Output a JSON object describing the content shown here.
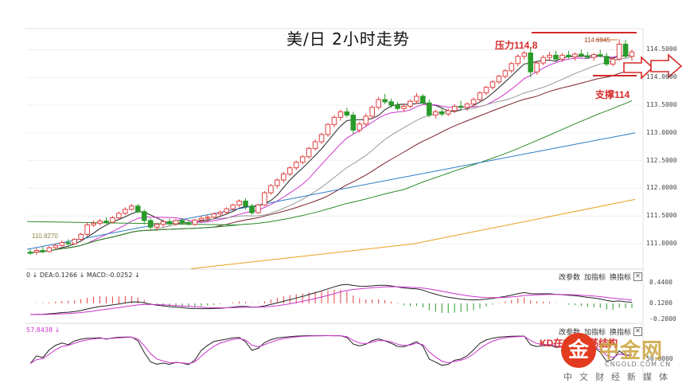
{
  "title": "美/日 2小时走势",
  "annotations": {
    "resistance": "压力114.8",
    "support": "支撑114",
    "last_price": "114.6945",
    "low_label": "110.8270",
    "kd_note_1": "KD在5",
    "kd_note_2": "震荡结构"
  },
  "macd_panel": {
    "prefix": "0",
    "dea_label": "DEA:0.1266",
    "macd_label": "MACD:-0.0252",
    "buttons": [
      "改参数",
      "加指标",
      "换指标"
    ],
    "close": "✕",
    "ticks": [
      "0.4400",
      "0.1200",
      "-0.2000"
    ]
  },
  "kd_panel": {
    "value_label": "57.8438",
    "buttons": [
      "改参数",
      "加指标",
      "换指标"
    ],
    "close": "✕",
    "ticks": [
      "50.0000"
    ]
  },
  "watermark": {
    "logo": "金",
    "name": "中金网",
    "url": "CNGOLD.COM.CN",
    "sub": "中文财经新媒体"
  },
  "colors": {
    "up": "#e04040",
    "down": "#2a9a2a",
    "ma_black": "#222222",
    "ma_magenta": "#cc33cc",
    "ma_gray": "#999999",
    "ma_darkred": "#7a1f2a",
    "ma_green": "#2a8a2a",
    "ma_blue": "#2a7ac0",
    "ma_orange": "#e8a020",
    "annotation": "#d42a2a"
  },
  "chart_data": {
    "type": "candlestick",
    "yticks": [
      "114.5000",
      "114.0000",
      "113.5000",
      "113.0000",
      "112.5000",
      "112.0000",
      "111.5000",
      "111.0000"
    ],
    "ylim": [
      110.6,
      114.85
    ],
    "candles": [
      [
        110.85,
        110.9,
        110.8,
        110.83
      ],
      [
        110.85,
        110.92,
        110.8,
        110.88
      ],
      [
        110.88,
        110.95,
        110.83,
        110.86
      ],
      [
        110.86,
        110.96,
        110.84,
        110.93
      ],
      [
        110.93,
        111.0,
        110.9,
        110.97
      ],
      [
        110.97,
        111.06,
        110.95,
        111.02
      ],
      [
        111.02,
        111.08,
        110.96,
        111.0
      ],
      [
        111.0,
        111.1,
        110.98,
        111.08
      ],
      [
        111.08,
        111.2,
        111.05,
        111.17
      ],
      [
        111.17,
        111.38,
        111.14,
        111.34
      ],
      [
        111.34,
        111.42,
        111.3,
        111.37
      ],
      [
        111.37,
        111.45,
        111.33,
        111.41
      ],
      [
        111.41,
        111.48,
        111.36,
        111.39
      ],
      [
        111.39,
        111.5,
        111.37,
        111.47
      ],
      [
        111.47,
        111.58,
        111.44,
        111.55
      ],
      [
        111.55,
        111.66,
        111.52,
        111.62
      ],
      [
        111.62,
        111.72,
        111.6,
        111.68
      ],
      [
        111.68,
        111.72,
        111.55,
        111.58
      ],
      [
        111.58,
        111.62,
        111.35,
        111.42
      ],
      [
        111.42,
        111.46,
        111.25,
        111.3
      ],
      [
        111.3,
        111.38,
        111.24,
        111.35
      ],
      [
        111.35,
        111.44,
        111.3,
        111.4
      ],
      [
        111.4,
        111.45,
        111.32,
        111.36
      ],
      [
        111.36,
        111.45,
        111.33,
        111.42
      ],
      [
        111.42,
        111.46,
        111.34,
        111.38
      ],
      [
        111.38,
        111.43,
        111.33,
        111.35
      ],
      [
        111.35,
        111.45,
        111.32,
        111.43
      ],
      [
        111.43,
        111.5,
        111.38,
        111.46
      ],
      [
        111.46,
        111.52,
        111.4,
        111.48
      ],
      [
        111.48,
        111.56,
        111.45,
        111.54
      ],
      [
        111.54,
        111.6,
        111.5,
        111.57
      ],
      [
        111.57,
        111.66,
        111.54,
        111.63
      ],
      [
        111.63,
        111.72,
        111.6,
        111.7
      ],
      [
        111.7,
        111.8,
        111.66,
        111.77
      ],
      [
        111.77,
        111.82,
        111.62,
        111.68
      ],
      [
        111.68,
        111.72,
        111.52,
        111.56
      ],
      [
        111.56,
        111.72,
        111.54,
        111.7
      ],
      [
        111.7,
        111.95,
        111.68,
        111.92
      ],
      [
        111.92,
        112.08,
        111.88,
        112.05
      ],
      [
        112.05,
        112.18,
        112.0,
        112.15
      ],
      [
        112.15,
        112.3,
        112.1,
        112.26
      ],
      [
        112.26,
        112.4,
        112.22,
        112.37
      ],
      [
        112.37,
        112.5,
        112.33,
        112.47
      ],
      [
        112.47,
        112.6,
        112.43,
        112.57
      ],
      [
        112.57,
        112.75,
        112.53,
        112.72
      ],
      [
        112.72,
        112.88,
        112.68,
        112.84
      ],
      [
        112.84,
        113.0,
        112.8,
        112.97
      ],
      [
        112.97,
        113.18,
        112.93,
        113.15
      ],
      [
        113.15,
        113.32,
        113.1,
        113.28
      ],
      [
        113.28,
        113.42,
        113.22,
        113.38
      ],
      [
        113.38,
        113.45,
        113.28,
        113.32
      ],
      [
        113.32,
        113.38,
        112.98,
        113.05
      ],
      [
        113.05,
        113.2,
        113.0,
        113.16
      ],
      [
        113.16,
        113.35,
        113.12,
        113.3
      ],
      [
        113.3,
        113.5,
        113.26,
        113.46
      ],
      [
        113.46,
        113.65,
        113.42,
        113.6
      ],
      [
        113.6,
        113.7,
        113.52,
        113.56
      ],
      [
        113.56,
        113.62,
        113.45,
        113.5
      ],
      [
        113.5,
        113.56,
        113.4,
        113.44
      ],
      [
        113.44,
        113.52,
        113.38,
        113.48
      ],
      [
        113.48,
        113.6,
        113.44,
        113.57
      ],
      [
        113.57,
        113.72,
        113.52,
        113.66
      ],
      [
        113.66,
        113.7,
        113.5,
        113.54
      ],
      [
        113.54,
        113.6,
        113.28,
        113.32
      ],
      [
        113.32,
        113.42,
        113.26,
        113.38
      ],
      [
        113.38,
        113.46,
        113.3,
        113.34
      ],
      [
        113.34,
        113.44,
        113.3,
        113.4
      ],
      [
        113.4,
        113.52,
        113.36,
        113.48
      ],
      [
        113.48,
        113.58,
        113.42,
        113.46
      ],
      [
        113.46,
        113.55,
        113.4,
        113.52
      ],
      [
        113.52,
        113.64,
        113.48,
        113.6
      ],
      [
        113.6,
        113.75,
        113.56,
        113.72
      ],
      [
        113.72,
        113.85,
        113.68,
        113.82
      ],
      [
        113.82,
        113.95,
        113.78,
        113.92
      ],
      [
        113.92,
        114.05,
        113.88,
        114.02
      ],
      [
        114.02,
        114.15,
        113.98,
        114.12
      ],
      [
        114.12,
        114.28,
        114.08,
        114.25
      ],
      [
        114.25,
        114.42,
        114.2,
        114.38
      ],
      [
        114.38,
        114.48,
        114.32,
        114.44
      ],
      [
        114.44,
        114.55,
        114.0,
        114.1
      ],
      [
        114.1,
        114.3,
        114.05,
        114.26
      ],
      [
        114.26,
        114.4,
        114.22,
        114.36
      ],
      [
        114.36,
        114.46,
        114.3,
        114.4
      ],
      [
        114.4,
        114.48,
        114.3,
        114.33
      ],
      [
        114.33,
        114.44,
        114.28,
        114.4
      ],
      [
        114.4,
        114.48,
        114.34,
        114.37
      ],
      [
        114.37,
        114.45,
        114.3,
        114.42
      ],
      [
        114.42,
        114.5,
        114.36,
        114.39
      ],
      [
        114.39,
        114.46,
        114.33,
        114.36
      ],
      [
        114.36,
        114.44,
        114.3,
        114.41
      ],
      [
        114.41,
        114.5,
        114.36,
        114.38
      ],
      [
        114.38,
        114.44,
        114.2,
        114.24
      ],
      [
        114.24,
        114.36,
        114.2,
        114.33
      ],
      [
        114.33,
        114.69,
        114.3,
        114.6
      ],
      [
        114.6,
        114.68,
        114.34,
        114.38
      ],
      [
        114.38,
        114.5,
        114.3,
        114.46
      ]
    ]
  }
}
